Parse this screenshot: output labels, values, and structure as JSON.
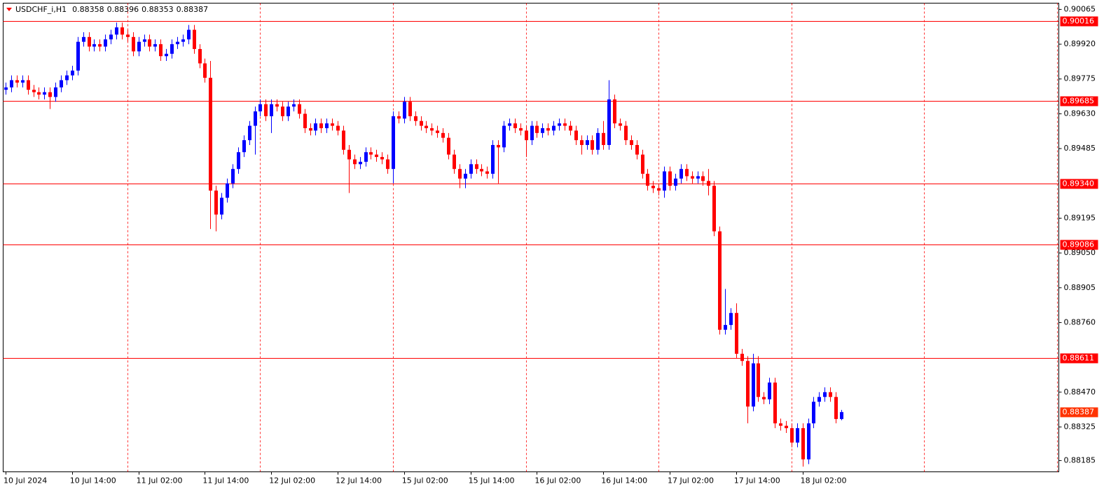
{
  "chart_data": {
    "type": "candlestick",
    "title": "USDCHF_i,H1",
    "up_color": "#0000ff",
    "down_color": "#ff0000",
    "level_color": "#ff0000",
    "current_color": "#ff3300",
    "grid": true,
    "categories": [
      "10 Jul 2024",
      null,
      null,
      null,
      null,
      null,
      null,
      null,
      null,
      null,
      null,
      null,
      "10 Jul 14:00",
      null,
      null,
      null,
      null,
      null,
      null,
      null,
      null,
      null,
      null,
      null,
      "11 Jul 02:00",
      null,
      null,
      null,
      null,
      null,
      null,
      null,
      null,
      null,
      null,
      null,
      "11 Jul 14:00",
      null,
      null,
      null,
      null,
      null,
      null,
      null,
      null,
      null,
      null,
      null,
      "12 Jul 02:00",
      null,
      null,
      null,
      null,
      null,
      null,
      null,
      null,
      null,
      null,
      null,
      "12 Jul 14:00",
      null,
      null,
      null,
      null,
      null,
      null,
      null,
      null,
      null,
      null,
      null,
      "15 Jul 02:00",
      null,
      null,
      null,
      null,
      null,
      null,
      null,
      null,
      null,
      null,
      null,
      "15 Jul 14:00",
      null,
      null,
      null,
      null,
      null,
      null,
      null,
      null,
      null,
      null,
      null,
      "16 Jul 02:00",
      null,
      null,
      null,
      null,
      null,
      null,
      null,
      null,
      null,
      null,
      null,
      "16 Jul 14:00",
      null,
      null,
      null,
      null,
      null,
      null,
      null,
      null,
      null,
      null,
      null,
      "17 Jul 02:00",
      null,
      null,
      null,
      null,
      null,
      null,
      null,
      null,
      null,
      null,
      null,
      "17 Jul 14:00",
      null,
      null,
      null,
      null,
      null,
      null,
      null,
      null,
      null,
      null,
      null,
      "18 Jul 02:00",
      null,
      null,
      null,
      null,
      null,
      null,
      null
    ],
    "open": [
      0.8973,
      0.8974,
      0.8977,
      0.8976,
      0.8977,
      0.8973,
      0.8972,
      0.8971,
      0.8972,
      0.897,
      0.8974,
      0.8977,
      0.8979,
      0.8981,
      0.8993,
      0.8995,
      0.8991,
      0.8992,
      0.8991,
      0.8994,
      0.8996,
      0.8999,
      0.8996,
      0.8995,
      0.8989,
      0.8993,
      0.8994,
      0.8991,
      0.8992,
      0.8987,
      0.8988,
      0.8992,
      0.8993,
      0.8994,
      0.8998,
      0.899,
      0.8984,
      0.8978,
      0.8931,
      0.8921,
      0.8928,
      0.8934,
      0.894,
      0.8947,
      0.8952,
      0.8958,
      0.8964,
      0.8967,
      0.8962,
      0.8967,
      0.8966,
      0.8962,
      0.8966,
      0.8967,
      0.8963,
      0.8957,
      0.8956,
      0.8959,
      0.8957,
      0.8959,
      0.8958,
      0.8956,
      0.8948,
      0.8944,
      0.8942,
      0.8943,
      0.8947,
      0.8946,
      0.8945,
      0.8944,
      0.894,
      0.8962,
      0.8961,
      0.8968,
      0.8962,
      0.896,
      0.8958,
      0.8957,
      0.8956,
      0.8955,
      0.8953,
      0.8946,
      0.894,
      0.8936,
      0.8938,
      0.8942,
      0.894,
      0.8939,
      0.8938,
      0.895,
      0.8949,
      0.8958,
      0.8959,
      0.8957,
      0.8956,
      0.8952,
      0.8958,
      0.8955,
      0.8957,
      0.8956,
      0.8958,
      0.8959,
      0.8958,
      0.8956,
      0.8952,
      0.895,
      0.8952,
      0.8948,
      0.8955,
      0.895,
      0.8969,
      0.8959,
      0.8958,
      0.8952,
      0.895,
      0.8946,
      0.8938,
      0.8933,
      0.8932,
      0.8931,
      0.8939,
      0.8933,
      0.8936,
      0.894,
      0.8937,
      0.8936,
      0.8937,
      0.8935,
      0.8933,
      0.8914,
      0.8873,
      0.8875,
      0.888,
      0.8863,
      0.886,
      0.8841,
      0.8859,
      0.8845,
      0.8844,
      0.8851,
      0.8834,
      0.8833,
      0.8832,
      0.8826,
      0.8832,
      0.8819,
      0.8834,
      0.8843,
      0.8845,
      0.8847,
      0.8845,
      0.88358
    ],
    "high": [
      0.8976,
      0.8979,
      0.8979,
      0.8979,
      0.8979,
      0.8975,
      0.8974,
      0.8974,
      0.8974,
      0.8976,
      0.8979,
      0.8981,
      0.8983,
      0.8995,
      0.8997,
      0.8997,
      0.8994,
      0.8994,
      0.8996,
      0.8998,
      0.9001,
      0.9001,
      0.8998,
      0.8997,
      0.8995,
      0.8996,
      0.8996,
      0.8994,
      0.8994,
      0.899,
      0.8994,
      0.8995,
      0.8996,
      0.9,
      0.9,
      0.8992,
      0.8986,
      0.8985,
      0.8933,
      0.893,
      0.8936,
      0.8942,
      0.8949,
      0.8954,
      0.896,
      0.8966,
      0.8969,
      0.8969,
      0.8969,
      0.8969,
      0.8968,
      0.8968,
      0.8969,
      0.8969,
      0.8965,
      0.8959,
      0.8961,
      0.8961,
      0.8961,
      0.8961,
      0.896,
      0.8958,
      0.895,
      0.8946,
      0.8945,
      0.8949,
      0.8949,
      0.8948,
      0.8947,
      0.8946,
      0.8964,
      0.8964,
      0.897,
      0.897,
      0.8964,
      0.8962,
      0.896,
      0.8959,
      0.8958,
      0.8957,
      0.8955,
      0.8948,
      0.8942,
      0.894,
      0.8944,
      0.8944,
      0.8942,
      0.8941,
      0.8952,
      0.8952,
      0.896,
      0.8961,
      0.8961,
      0.8959,
      0.8958,
      0.896,
      0.896,
      0.8959,
      0.8959,
      0.896,
      0.8961,
      0.8961,
      0.896,
      0.8958,
      0.8954,
      0.8954,
      0.8954,
      0.8957,
      0.896,
      0.8977,
      0.8971,
      0.8961,
      0.896,
      0.8954,
      0.8952,
      0.8948,
      0.894,
      0.8935,
      0.8934,
      0.8941,
      0.8941,
      0.8938,
      0.8942,
      0.8942,
      0.8939,
      0.8939,
      0.8939,
      0.894,
      0.8935,
      0.8916,
      0.889,
      0.8882,
      0.8884,
      0.8865,
      0.8862,
      0.8863,
      0.8862,
      0.8847,
      0.8853,
      0.8853,
      0.8836,
      0.8835,
      0.8834,
      0.8834,
      0.8834,
      0.8836,
      0.8845,
      0.8847,
      0.8849,
      0.8849,
      0.8847,
      0.88396
    ],
    "low": [
      0.8971,
      0.8972,
      0.8974,
      0.8974,
      0.8971,
      0.897,
      0.8969,
      0.8969,
      0.8965,
      0.8968,
      0.8972,
      0.8975,
      0.8977,
      0.8979,
      0.8991,
      0.8989,
      0.8989,
      0.8989,
      0.8989,
      0.8992,
      0.8994,
      0.8994,
      0.8993,
      0.8987,
      0.8987,
      0.8991,
      0.8989,
      0.8989,
      0.8985,
      0.8985,
      0.8986,
      0.899,
      0.8991,
      0.8992,
      0.8988,
      0.8982,
      0.8976,
      0.8915,
      0.8914,
      0.8919,
      0.8926,
      0.8932,
      0.8938,
      0.8945,
      0.895,
      0.8946,
      0.8962,
      0.896,
      0.8955,
      0.8964,
      0.896,
      0.896,
      0.8964,
      0.8961,
      0.8955,
      0.8954,
      0.8954,
      0.8955,
      0.8955,
      0.8956,
      0.8954,
      0.8946,
      0.893,
      0.894,
      0.894,
      0.8941,
      0.8944,
      0.8943,
      0.8942,
      0.8938,
      0.8934,
      0.8959,
      0.8959,
      0.896,
      0.8958,
      0.8956,
      0.8955,
      0.8954,
      0.8953,
      0.8951,
      0.8944,
      0.8938,
      0.8932,
      0.8932,
      0.8936,
      0.8938,
      0.8937,
      0.8936,
      0.8936,
      0.8934,
      0.8947,
      0.8956,
      0.8955,
      0.8954,
      0.8945,
      0.895,
      0.8953,
      0.8953,
      0.8954,
      0.8954,
      0.8956,
      0.8956,
      0.8954,
      0.895,
      0.8946,
      0.8948,
      0.8946,
      0.8946,
      0.8948,
      0.8948,
      0.8957,
      0.8956,
      0.895,
      0.8948,
      0.8944,
      0.8936,
      0.8931,
      0.893,
      0.8929,
      0.8928,
      0.8931,
      0.8931,
      0.8934,
      0.8935,
      0.8934,
      0.8934,
      0.8933,
      0.8929,
      0.8912,
      0.8871,
      0.8871,
      0.8873,
      0.8861,
      0.8858,
      0.8834,
      0.8839,
      0.8843,
      0.8842,
      0.8842,
      0.8832,
      0.8831,
      0.883,
      0.8824,
      0.8824,
      0.8816,
      0.8817,
      0.8832,
      0.8841,
      0.8843,
      0.8843,
      0.8834,
      0.88353
    ],
    "close": [
      0.8974,
      0.8977,
      0.8976,
      0.8977,
      0.8973,
      0.8972,
      0.8971,
      0.8972,
      0.897,
      0.8974,
      0.8977,
      0.8979,
      0.8981,
      0.8993,
      0.8995,
      0.8991,
      0.8992,
      0.8991,
      0.8994,
      0.8996,
      0.8999,
      0.8996,
      0.8995,
      0.8989,
      0.8993,
      0.8994,
      0.8991,
      0.8992,
      0.8987,
      0.8988,
      0.8992,
      0.8993,
      0.8994,
      0.8998,
      0.899,
      0.8984,
      0.8978,
      0.8931,
      0.8921,
      0.8928,
      0.8934,
      0.894,
      0.8947,
      0.8952,
      0.8958,
      0.8964,
      0.8967,
      0.8962,
      0.8967,
      0.8966,
      0.8962,
      0.8966,
      0.8967,
      0.8963,
      0.8957,
      0.8956,
      0.8959,
      0.8957,
      0.8959,
      0.8958,
      0.8956,
      0.8948,
      0.8944,
      0.8942,
      0.8943,
      0.8947,
      0.8946,
      0.8945,
      0.8944,
      0.894,
      0.8962,
      0.8961,
      0.8968,
      0.8962,
      0.896,
      0.8958,
      0.8957,
      0.8956,
      0.8955,
      0.8953,
      0.8946,
      0.894,
      0.8936,
      0.8938,
      0.8942,
      0.894,
      0.8939,
      0.8938,
      0.895,
      0.8949,
      0.8958,
      0.8959,
      0.8957,
      0.8956,
      0.8952,
      0.8958,
      0.8955,
      0.8957,
      0.8956,
      0.8958,
      0.8959,
      0.8958,
      0.8956,
      0.8952,
      0.895,
      0.8952,
      0.8948,
      0.8955,
      0.895,
      0.8969,
      0.8959,
      0.8958,
      0.8952,
      0.895,
      0.8946,
      0.8938,
      0.8933,
      0.8932,
      0.8931,
      0.8939,
      0.8933,
      0.8936,
      0.894,
      0.8937,
      0.8936,
      0.8937,
      0.8935,
      0.8933,
      0.8914,
      0.8873,
      0.8875,
      0.888,
      0.8863,
      0.886,
      0.8841,
      0.8859,
      0.8845,
      0.8844,
      0.8851,
      0.8834,
      0.8833,
      0.8832,
      0.8826,
      0.8832,
      0.8819,
      0.8834,
      0.8843,
      0.8845,
      0.8847,
      0.8845,
      0.88358,
      0.88387
    ],
    "ylim": [
      0.88138,
      0.90091
    ],
    "yticks": [
      0.90065,
      {
        "value": 0.8992,
        "label": "0.89920"
      },
      0.89775,
      {
        "value": 0.8963,
        "label": "0.89630"
      },
      0.89485,
      0.89195,
      {
        "value": 0.8905,
        "label": "0.89050"
      },
      0.88905,
      {
        "value": 0.8876,
        "label": "0.88760"
      },
      {
        "value": 0.8847,
        "label": "0.88470"
      },
      0.88325,
      0.88185
    ],
    "levels": [
      0.90016,
      0.89685,
      0.8934,
      0.89086,
      0.88611
    ],
    "level_labels": [
      "0.90016",
      "0.89685",
      "0.89340",
      "0.89086",
      "0.88611"
    ]
  }
}
